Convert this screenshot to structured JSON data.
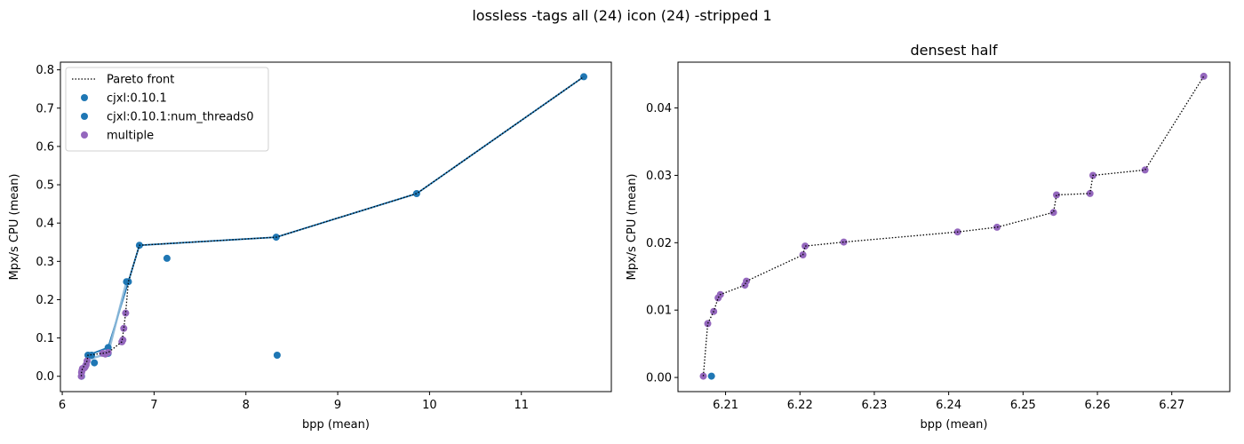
{
  "suptitle": "lossless -tags all (24) icon (24) -stripped 1",
  "colors": {
    "series_blue": "#1f77b4",
    "series_purple": "#9467bd",
    "light_blue_line": "#8ab7d8",
    "pareto": "#000000"
  },
  "chart_data": [
    {
      "type": "scatter",
      "title": "",
      "xlabel": "bpp (mean)",
      "ylabel": "Mpx/s CPU (mean)",
      "xlim": [
        5.98,
        11.98
      ],
      "ylim": [
        -0.04,
        0.82
      ],
      "xticks": [
        6,
        7,
        8,
        9,
        10,
        11
      ],
      "yticks": [
        0.0,
        0.1,
        0.2,
        0.3,
        0.4,
        0.5,
        0.6,
        0.7,
        0.8
      ],
      "xtick_labels": [
        "6",
        "7",
        "8",
        "9",
        "10",
        "11"
      ],
      "ytick_labels": [
        "0.0",
        "0.1",
        "0.2",
        "0.3",
        "0.4",
        "0.5",
        "0.6",
        "0.7",
        "0.8"
      ],
      "grid": false,
      "legend_position": "upper-left",
      "legend": [
        {
          "label": "Pareto front",
          "kind": "dotted-line",
          "color": "#000000"
        },
        {
          "label": "cjxl:0.10.1",
          "kind": "marker",
          "color": "#1f77b4"
        },
        {
          "label": "cjxl:0.10.1:num_threads0",
          "kind": "marker",
          "color": "#1f77b4"
        },
        {
          "label": "multiple",
          "kind": "marker",
          "color": "#9467bd"
        }
      ],
      "series": [
        {
          "name": "cjxl:0.10.1",
          "color": "#1f77b4",
          "line_color": "#1f77b4",
          "points": [
            [
              6.28,
              0.055
            ],
            [
              6.32,
              0.055
            ],
            [
              6.35,
              0.035
            ],
            [
              6.5,
              0.075
            ],
            [
              6.72,
              0.247
            ],
            [
              6.84,
              0.342
            ],
            [
              7.14,
              0.308
            ],
            [
              8.33,
              0.363
            ],
            [
              8.34,
              0.055
            ],
            [
              9.86,
              0.477
            ],
            [
              11.68,
              0.782
            ]
          ],
          "line": [
            [
              6.28,
              0.055
            ],
            [
              6.5,
              0.075
            ],
            [
              6.72,
              0.247
            ],
            [
              6.84,
              0.342
            ],
            [
              8.33,
              0.363
            ],
            [
              9.86,
              0.477
            ],
            [
              11.68,
              0.782
            ]
          ]
        },
        {
          "name": "cjxl:0.10.1:num_threads0",
          "color": "#1f77b4",
          "line_color": "#8ab7d8",
          "points": [
            [
              6.21,
              0.0
            ],
            [
              6.5,
              0.06
            ],
            [
              6.7,
              0.247
            ]
          ],
          "line": [
            [
              6.21,
              0.0
            ],
            [
              6.3,
              0.045
            ],
            [
              6.5,
              0.06
            ],
            [
              6.7,
              0.247
            ]
          ]
        },
        {
          "name": "multiple",
          "color": "#9467bd",
          "points": [
            [
              6.207,
              0.0
            ],
            [
              6.21,
              0.01
            ],
            [
              6.215,
              0.015
            ],
            [
              6.22,
              0.02
            ],
            [
              6.24,
              0.022
            ],
            [
              6.25,
              0.025
            ],
            [
              6.26,
              0.03
            ],
            [
              6.27,
              0.04
            ],
            [
              6.44,
              0.06
            ],
            [
              6.47,
              0.058
            ],
            [
              6.5,
              0.062
            ],
            [
              6.65,
              0.09
            ],
            [
              6.66,
              0.095
            ],
            [
              6.67,
              0.125
            ],
            [
              6.69,
              0.165
            ]
          ]
        }
      ],
      "pareto": [
        [
          6.207,
          0.0
        ],
        [
          6.21,
          0.012
        ],
        [
          6.22,
          0.02
        ],
        [
          6.27,
          0.04
        ],
        [
          6.28,
          0.055
        ],
        [
          6.44,
          0.06
        ],
        [
          6.5,
          0.062
        ],
        [
          6.65,
          0.09
        ],
        [
          6.67,
          0.125
        ],
        [
          6.69,
          0.165
        ],
        [
          6.72,
          0.247
        ],
        [
          6.84,
          0.342
        ],
        [
          8.33,
          0.363
        ],
        [
          9.86,
          0.477
        ],
        [
          11.68,
          0.782
        ]
      ]
    },
    {
      "type": "scatter",
      "title": "densest half",
      "xlabel": "bpp (mean)",
      "ylabel": "Mpx/s CPU (mean)",
      "xlim": [
        6.2036,
        6.2778
      ],
      "ylim": [
        -0.0021,
        0.0468
      ],
      "xticks": [
        6.21,
        6.22,
        6.23,
        6.24,
        6.25,
        6.26,
        6.27
      ],
      "yticks": [
        0.0,
        0.01,
        0.02,
        0.03,
        0.04
      ],
      "xtick_labels": [
        "6.21",
        "6.22",
        "6.23",
        "6.24",
        "6.25",
        "6.26",
        "6.27"
      ],
      "ytick_labels": [
        "0.00",
        "0.01",
        "0.02",
        "0.03",
        "0.04"
      ],
      "grid": false,
      "series": [
        {
          "name": "multiple",
          "color": "#9467bd",
          "points": [
            [
              6.207,
              0.0002
            ],
            [
              6.2076,
              0.008
            ],
            [
              6.2084,
              0.0098
            ],
            [
              6.209,
              0.0118
            ],
            [
              6.2093,
              0.0123
            ],
            [
              6.2126,
              0.0137
            ],
            [
              6.2128,
              0.0143
            ],
            [
              6.2204,
              0.0182
            ],
            [
              6.2207,
              0.0195
            ],
            [
              6.2259,
              0.0201
            ],
            [
              6.2412,
              0.0216
            ],
            [
              6.2465,
              0.0223
            ],
            [
              6.2541,
              0.0245
            ],
            [
              6.2545,
              0.0271
            ],
            [
              6.259,
              0.0273
            ],
            [
              6.2594,
              0.03
            ],
            [
              6.2664,
              0.0308
            ],
            [
              6.2743,
              0.0447
            ]
          ]
        },
        {
          "name": "cjxl:0.10.1",
          "color": "#1f77b4",
          "points": [
            [
              6.2081,
              0.0002
            ]
          ]
        }
      ],
      "pareto": [
        [
          6.207,
          0.0002
        ],
        [
          6.2076,
          0.008
        ],
        [
          6.2084,
          0.0098
        ],
        [
          6.209,
          0.0118
        ],
        [
          6.2093,
          0.0123
        ],
        [
          6.2126,
          0.0137
        ],
        [
          6.2128,
          0.0143
        ],
        [
          6.2204,
          0.0182
        ],
        [
          6.2207,
          0.0195
        ],
        [
          6.2259,
          0.0201
        ],
        [
          6.2412,
          0.0216
        ],
        [
          6.2465,
          0.0223
        ],
        [
          6.2541,
          0.0245
        ],
        [
          6.2545,
          0.0271
        ],
        [
          6.259,
          0.0273
        ],
        [
          6.2594,
          0.03
        ],
        [
          6.2664,
          0.0308
        ],
        [
          6.2743,
          0.0447
        ]
      ]
    }
  ]
}
